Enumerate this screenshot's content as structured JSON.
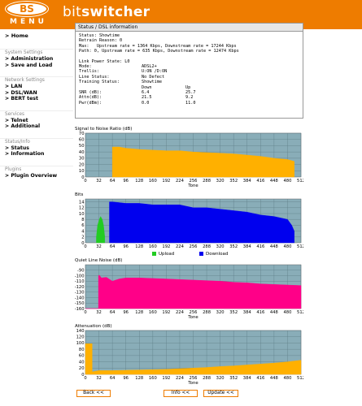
{
  "header": {
    "logo_bs": "BS",
    "logo_menu": "MENU",
    "brand_bit": "bit",
    "brand_switcher": "switcher"
  },
  "sidebar": {
    "home": "> Home",
    "sections": [
      {
        "title": "System Settings",
        "items": [
          "> Administration",
          "> Save and Load"
        ]
      },
      {
        "title": "Network Settings",
        "items": [
          "> LAN",
          "> DSL/WAN",
          "> BERT test"
        ]
      },
      {
        "title": "Services",
        "items": [
          "> Telnet",
          "> Additional"
        ]
      },
      {
        "title": "Status/Info",
        "items": [
          "> Status",
          "> Information"
        ]
      },
      {
        "title": "Plugins",
        "items": [
          "> Plugin Overview"
        ]
      }
    ]
  },
  "status": {
    "title": "Status / DSL information",
    "lines": [
      "Status: Showtime",
      "Retrain Reason: 0",
      "Max:   Upstream rate = 1364 Kbps, Downstream rate = 17244 Kbps",
      "Path: 0, Upstream rate = 635 Kbps, Downstream rate = 12474 Kbps"
    ],
    "kv": [
      {
        "k": "Link Power State: L0",
        "v": "",
        "v2": ""
      },
      {
        "k": "Mode:",
        "v": "ADSL2+",
        "v2": ""
      },
      {
        "k": "Trellis:",
        "v": "U:ON /D:ON",
        "v2": ""
      },
      {
        "k": "Line Status:",
        "v": "No Defect",
        "v2": ""
      },
      {
        "k": "Training Status:",
        "v": "Showtime",
        "v2": ""
      }
    ],
    "table_head": {
      "k": "",
      "v": "Down",
      "v2": "Up"
    },
    "table": [
      {
        "k": "SNR (dB):",
        "v": "6.4",
        "v2": "25.7"
      },
      {
        "k": "Attn(dB):",
        "v": "21.5",
        "v2": "9.2"
      },
      {
        "k": "Pwr(dBm):",
        "v": "0.0",
        "v2": "11.0"
      }
    ]
  },
  "chart_data": [
    {
      "type": "area",
      "title": "Signal to Noise Ratio (dB)",
      "xlabel": "Tone",
      "xlim": [
        0,
        512
      ],
      "ylim": [
        0,
        70
      ],
      "yticks": [
        0,
        10,
        20,
        30,
        40,
        50,
        60,
        70
      ],
      "xticks": [
        0,
        32,
        64,
        96,
        128,
        160,
        192,
        224,
        256,
        288,
        320,
        352,
        384,
        416,
        448,
        480,
        512
      ],
      "series": [
        {
          "color": "#ffb000",
          "points": [
            [
              64,
              48
            ],
            [
              80,
              48
            ],
            [
              96,
              46
            ],
            [
              128,
              44
            ],
            [
              160,
              43
            ],
            [
              192,
              42
            ],
            [
              224,
              42
            ],
            [
              256,
              40
            ],
            [
              288,
              39
            ],
            [
              320,
              38
            ],
            [
              352,
              37
            ],
            [
              384,
              35
            ],
            [
              416,
              33
            ],
            [
              448,
              30
            ],
            [
              480,
              28
            ],
            [
              496,
              25
            ]
          ]
        }
      ]
    },
    {
      "type": "area",
      "title": "Bits",
      "xlabel": "",
      "xlim": [
        0,
        512
      ],
      "ylim": [
        0,
        15
      ],
      "yticks": [
        0,
        2,
        4,
        6,
        8,
        10,
        12,
        14
      ],
      "xticks": [
        0,
        32,
        64,
        96,
        128,
        160,
        192,
        224,
        256,
        288,
        320,
        352,
        384,
        416,
        448,
        480,
        512
      ],
      "series": [
        {
          "name": "Upload",
          "color": "#22cc22",
          "points": [
            [
              26,
              2
            ],
            [
              29,
              6
            ],
            [
              33,
              8
            ],
            [
              36,
              9
            ],
            [
              40,
              8
            ],
            [
              43,
              6
            ],
            [
              46,
              2
            ]
          ]
        },
        {
          "name": "Download",
          "color": "#0000ee",
          "points": [
            [
              57,
              14
            ],
            [
              64,
              14
            ],
            [
              96,
              13.5
            ],
            [
              128,
              13.5
            ],
            [
              160,
              13
            ],
            [
              192,
              13
            ],
            [
              224,
              13
            ],
            [
              256,
              12
            ],
            [
              288,
              12
            ],
            [
              320,
              11.5
            ],
            [
              352,
              11
            ],
            [
              384,
              10.5
            ],
            [
              416,
              9.5
            ],
            [
              448,
              9
            ],
            [
              480,
              8
            ],
            [
              490,
              6
            ],
            [
              496,
              4
            ]
          ]
        }
      ]
    },
    {
      "type": "area",
      "title": "Quiet Line Noise (dB)",
      "xlabel": "Tone",
      "xlim": [
        0,
        512
      ],
      "ylim": [
        -160,
        -80
      ],
      "yticks": [
        -160,
        -150,
        -140,
        -130,
        -120,
        -110,
        -100,
        -90
      ],
      "xticks": [
        0,
        32,
        64,
        96,
        128,
        160,
        192,
        224,
        256,
        288,
        320,
        352,
        384,
        416,
        448,
        480,
        512
      ],
      "series": [
        {
          "color": "#ff0088",
          "points": [
            [
              0,
              -160
            ],
            [
              31,
              -160
            ],
            [
              31,
              -100
            ],
            [
              33,
              -99
            ],
            [
              38,
              -104
            ],
            [
              50,
              -103
            ],
            [
              64,
              -110
            ],
            [
              80,
              -106
            ],
            [
              96,
              -104
            ],
            [
              128,
              -104
            ],
            [
              160,
              -105
            ],
            [
              192,
              -106
            ],
            [
              224,
              -107
            ],
            [
              256,
              -108
            ],
            [
              288,
              -109
            ],
            [
              320,
              -110
            ],
            [
              352,
              -112
            ],
            [
              384,
              -113
            ],
            [
              416,
              -115
            ],
            [
              448,
              -116
            ],
            [
              480,
              -117
            ],
            [
              512,
              -118
            ]
          ]
        }
      ]
    },
    {
      "type": "area",
      "title": "Attenuation (dB)",
      "xlabel": "Tone",
      "xlim": [
        0,
        512
      ],
      "ylim": [
        0,
        140
      ],
      "yticks": [
        0,
        20,
        40,
        60,
        80,
        100,
        120,
        140
      ],
      "xticks": [
        0,
        32,
        64,
        96,
        128,
        160,
        192,
        224,
        256,
        288,
        320,
        352,
        384,
        416,
        448,
        480,
        512
      ],
      "series": [
        {
          "color": "#ffb000",
          "points": [
            [
              0,
              98
            ],
            [
              2,
              98
            ],
            [
              16,
              98
            ],
            [
              16,
              8
            ],
            [
              32,
              12
            ],
            [
              64,
              12
            ],
            [
              96,
              13
            ],
            [
              128,
              14
            ],
            [
              160,
              15
            ],
            [
              192,
              16
            ],
            [
              224,
              18
            ],
            [
              256,
              20
            ],
            [
              288,
              22
            ],
            [
              320,
              25
            ],
            [
              352,
              27
            ],
            [
              384,
              30
            ],
            [
              416,
              33
            ],
            [
              448,
              36
            ],
            [
              480,
              40
            ],
            [
              512,
              45
            ]
          ]
        }
      ]
    }
  ],
  "buttons": {
    "back": "Back <<",
    "info": "Info <<",
    "update": "Update <<"
  }
}
